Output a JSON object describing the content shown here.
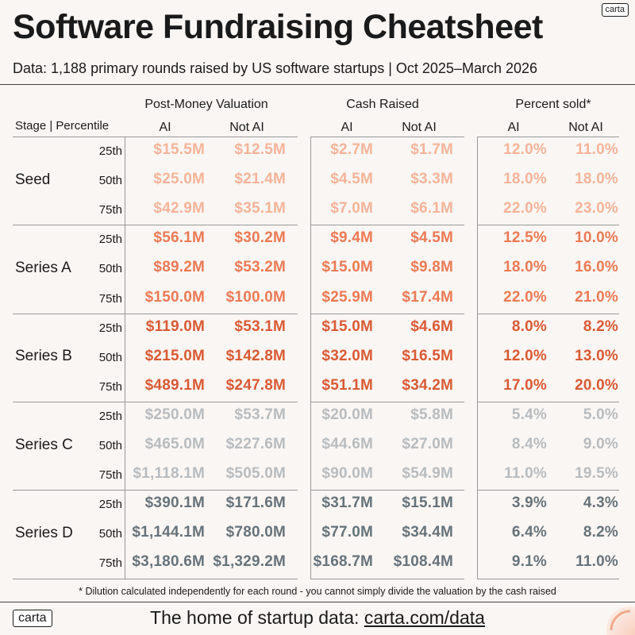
{
  "header": {
    "title": "Software Fundraising Cheatsheet",
    "subtitle": "Data: 1,188 primary rounds raised by US software startups | Oct 2025–March 2026",
    "logo": "carta"
  },
  "chart_data": {
    "type": "table",
    "title": "Software Fundraising Cheatsheet",
    "stage_header": "Stage | Percentile",
    "groups": [
      {
        "label": "Post-Money Valuation",
        "columns": [
          "AI",
          "Not AI"
        ]
      },
      {
        "label": "Cash Raised",
        "columns": [
          "AI",
          "Not AI"
        ]
      },
      {
        "label": "Percent sold*",
        "columns": [
          "AI",
          "Not AI"
        ]
      }
    ],
    "stages": [
      {
        "name": "Seed",
        "color": "#f5b49a",
        "rows": [
          {
            "percentile": "25th",
            "values": [
              "$15.5M",
              "$12.5M",
              "$2.7M",
              "$1.7M",
              "12.0%",
              "11.0%"
            ]
          },
          {
            "percentile": "50th",
            "values": [
              "$25.0M",
              "$21.4M",
              "$4.5M",
              "$3.3M",
              "18.0%",
              "18.0%"
            ]
          },
          {
            "percentile": "75th",
            "values": [
              "$42.9M",
              "$35.1M",
              "$7.0M",
              "$6.1M",
              "22.0%",
              "23.0%"
            ]
          }
        ]
      },
      {
        "name": "Series A",
        "color": "#ec7a55",
        "rows": [
          {
            "percentile": "25th",
            "values": [
              "$56.1M",
              "$30.2M",
              "$9.4M",
              "$4.5M",
              "12.5%",
              "10.0%"
            ]
          },
          {
            "percentile": "50th",
            "values": [
              "$89.2M",
              "$53.2M",
              "$15.0M",
              "$9.8M",
              "18.0%",
              "16.0%"
            ]
          },
          {
            "percentile": "75th",
            "values": [
              "$150.0M",
              "$100.0M",
              "$25.9M",
              "$17.4M",
              "22.0%",
              "21.0%"
            ]
          }
        ]
      },
      {
        "name": "Series B",
        "color": "#d95a35",
        "rows": [
          {
            "percentile": "25th",
            "values": [
              "$119.0M",
              "$53.1M",
              "$15.0M",
              "$4.6M",
              "8.0%",
              "8.2%"
            ]
          },
          {
            "percentile": "50th",
            "values": [
              "$215.0M",
              "$142.8M",
              "$32.0M",
              "$16.5M",
              "12.0%",
              "13.0%"
            ]
          },
          {
            "percentile": "75th",
            "values": [
              "$489.1M",
              "$247.8M",
              "$51.1M",
              "$34.2M",
              "17.0%",
              "20.0%"
            ]
          }
        ]
      },
      {
        "name": "Series C",
        "color": "#b8bcbf",
        "rows": [
          {
            "percentile": "25th",
            "values": [
              "$250.0M",
              "$53.7M",
              "$20.0M",
              "$5.8M",
              "5.4%",
              "5.0%"
            ]
          },
          {
            "percentile": "50th",
            "values": [
              "$465.0M",
              "$227.6M",
              "$44.6M",
              "$27.0M",
              "8.4%",
              "9.0%"
            ]
          },
          {
            "percentile": "75th",
            "values": [
              "$1,118.1M",
              "$505.0M",
              "$90.0M",
              "$54.9M",
              "11.0%",
              "19.5%"
            ]
          }
        ]
      },
      {
        "name": "Series D",
        "color": "#66737a",
        "rows": [
          {
            "percentile": "25th",
            "values": [
              "$390.1M",
              "$171.6M",
              "$31.7M",
              "$15.1M",
              "3.9%",
              "4.3%"
            ]
          },
          {
            "percentile": "50th",
            "values": [
              "$1,144.1M",
              "$780.0M",
              "$77.0M",
              "$34.4M",
              "6.4%",
              "8.2%"
            ]
          },
          {
            "percentile": "75th",
            "values": [
              "$3,180.6M",
              "$1,329.2M",
              "$168.7M",
              "$108.4M",
              "9.1%",
              "11.0%"
            ]
          }
        ]
      }
    ]
  },
  "footer": {
    "footnote": "* Dilution calculated independently for each round - you cannot simply divide the valuation by the cash raised",
    "tagline": "The home of startup data: ",
    "link": "carta.com/data",
    "logo": "carta"
  }
}
